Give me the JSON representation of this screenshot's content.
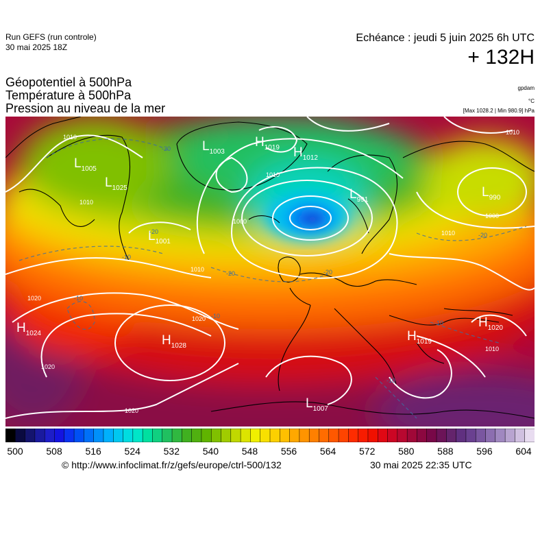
{
  "header": {
    "run_name": "Run GEFS (run controle)",
    "run_date": "30 mai 2025 18Z",
    "valid_time": "Echéance : jeudi 5 juin 2025 6h UTC",
    "lead_time": "+ 132H"
  },
  "titles": {
    "line1": "Géopotentiel à 500hPa",
    "line2": "Température à 500hPa",
    "line3": "Pression au niveau de la mer"
  },
  "units": {
    "geopotential": "gpdam",
    "temperature": "°C",
    "pressure_extremes": "[Max 1028.2 | Min 980.9] hPa"
  },
  "map": {
    "pressure_centers": [
      {
        "type": "L",
        "value": "1005"
      },
      {
        "type": "L",
        "value": "1025"
      },
      {
        "type": "L",
        "value": "1003"
      },
      {
        "type": "H",
        "value": "1019"
      },
      {
        "type": "H",
        "value": "1012"
      },
      {
        "type": "L",
        "value": "1001"
      },
      {
        "type": "L",
        "value": "990"
      },
      {
        "type": "H",
        "value": "1024"
      },
      {
        "type": "H",
        "value": "1028"
      },
      {
        "type": "H",
        "value": "1019"
      },
      {
        "type": "H",
        "value": "1020"
      },
      {
        "type": "L",
        "value": "1007"
      },
      {
        "type": "L",
        "value": "991"
      }
    ],
    "isobar_labels": [
      "1010",
      "1010",
      "1000",
      "1010",
      "1010",
      "1020",
      "1020",
      "1020",
      "1020",
      "1000",
      "1010",
      "1010",
      "1010"
    ],
    "isotherm_labels": [
      "-20",
      "-20",
      "-20",
      "-20",
      "-20",
      "-10",
      "-10",
      "-10",
      "-10",
      "-10"
    ]
  },
  "colorbar": {
    "tick_labels": [
      "500",
      "508",
      "516",
      "524",
      "532",
      "540",
      "548",
      "556",
      "564",
      "572",
      "580",
      "588",
      "596",
      "604"
    ],
    "colors": [
      "#000000",
      "#0a0a40",
      "#14146e",
      "#1a1a9e",
      "#1e1ec8",
      "#1414e0",
      "#0a32f0",
      "#0050f5",
      "#0070f8",
      "#0090fa",
      "#00b0fc",
      "#00c8f0",
      "#00dce0",
      "#00e6c8",
      "#00e0a0",
      "#10d080",
      "#20c060",
      "#30b840",
      "#40b020",
      "#50b010",
      "#60b400",
      "#80c000",
      "#a0cc00",
      "#c0d800",
      "#dce400",
      "#f0f000",
      "#f8e000",
      "#fcd000",
      "#ffc000",
      "#ffa800",
      "#ff9400",
      "#ff8000",
      "#ff6c00",
      "#ff5800",
      "#ff4400",
      "#ff2c00",
      "#f81c00",
      "#f01000",
      "#e00814",
      "#cc0624",
      "#b80830",
      "#a00838",
      "#8c0840",
      "#780848",
      "#6c1458",
      "#64246c",
      "#603080",
      "#6a4090",
      "#7a56a0",
      "#8c6eb0",
      "#a088c0",
      "#b8a4d0",
      "#d0c0e0",
      "#e8dcf0"
    ]
  },
  "footer": {
    "source": "© http://www.infoclimat.fr/z/gefs/europe/ctrl-500/132",
    "generated": "30 mai 2025 22:35 UTC"
  }
}
